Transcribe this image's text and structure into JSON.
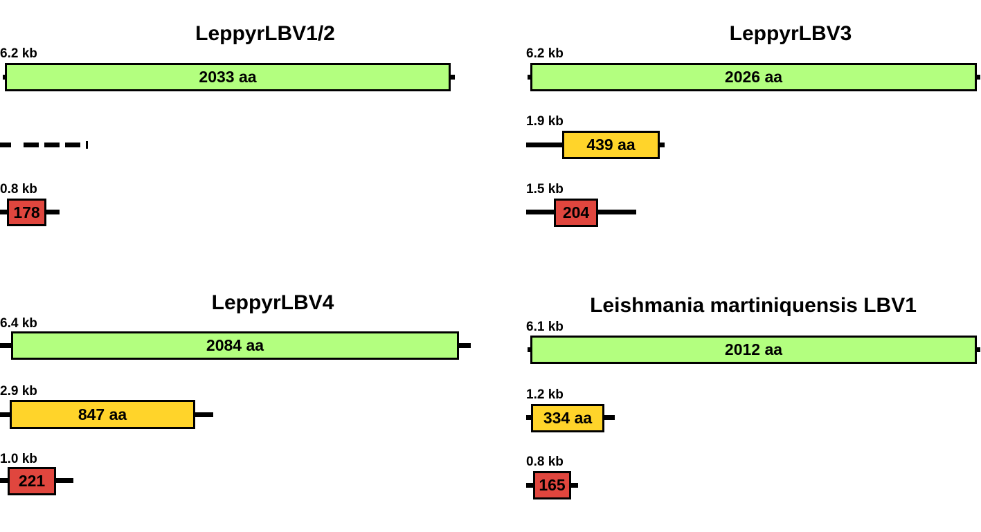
{
  "colors": {
    "green": "#b3ff7f",
    "yellow": "#ffd42a",
    "red": "#e0463e"
  },
  "panels": [
    {
      "title": "LeppyrLBV1/2",
      "segments": [
        {
          "kb": "6.2 kb",
          "aa": "2033 aa",
          "color": "green"
        },
        {
          "kb": "",
          "aa": "",
          "color": "none",
          "style": "dashed"
        },
        {
          "kb": "0.8 kb",
          "aa": "178",
          "color": "red"
        }
      ]
    },
    {
      "title": "LeppyrLBV3",
      "segments": [
        {
          "kb": "6.2 kb",
          "aa": "2026 aa",
          "color": "green"
        },
        {
          "kb": "1.9 kb",
          "aa": "439 aa",
          "color": "yellow"
        },
        {
          "kb": "1.5 kb",
          "aa": "204",
          "color": "red"
        }
      ]
    },
    {
      "title": "LeppyrLBV4",
      "segments": [
        {
          "kb": "6.4 kb",
          "aa": "2084 aa",
          "color": "green"
        },
        {
          "kb": "2.9 kb",
          "aa": "847 aa",
          "color": "yellow"
        },
        {
          "kb": "1.0 kb",
          "aa": "221",
          "color": "red"
        }
      ]
    },
    {
      "title": "Leishmania martiniquensis LBV1",
      "segments": [
        {
          "kb": "6.1 kb",
          "aa": "2012 aa",
          "color": "green"
        },
        {
          "kb": "1.2 kb",
          "aa": "334 aa",
          "color": "yellow"
        },
        {
          "kb": "0.8 kb",
          "aa": "165",
          "color": "red"
        }
      ]
    }
  ]
}
